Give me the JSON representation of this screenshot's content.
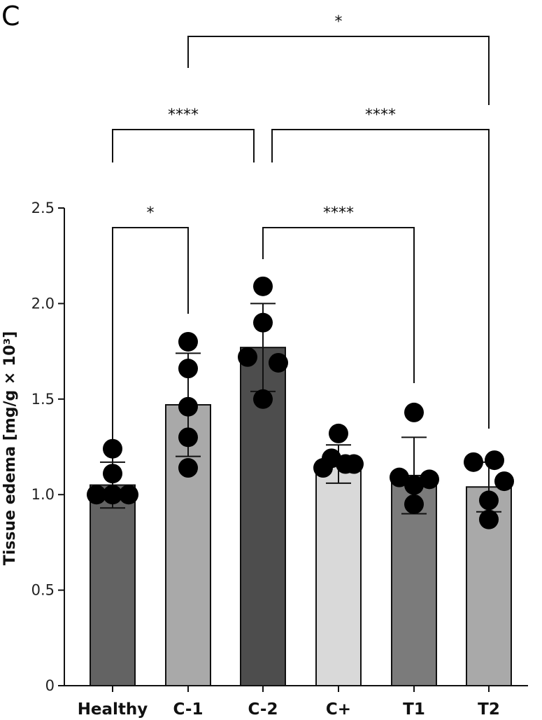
{
  "panel_label": "C",
  "chart_data": {
    "type": "bar",
    "title": "",
    "xlabel": "",
    "ylabel": "Tissue edema [mg/g × 10³]",
    "ylim": [
      0,
      2.5
    ],
    "yticks": [
      0,
      0.5,
      1.0,
      1.5,
      2.0,
      2.5
    ],
    "ytick_labels": [
      "0",
      "0.5",
      "1.0",
      "1.5",
      "2.0",
      "2.5"
    ],
    "categories": [
      "Healthy",
      "C-1",
      "C-2",
      "C+",
      "T1",
      "T2"
    ],
    "values": [
      1.05,
      1.47,
      1.77,
      1.16,
      1.1,
      1.04
    ],
    "error_sd": [
      0.12,
      0.27,
      0.23,
      0.1,
      0.2,
      0.13
    ],
    "bar_colors": [
      "#636363",
      "#a9a9a9",
      "#4d4d4d",
      "#d9d9d9",
      "#7b7b7b",
      "#a9a9a9"
    ],
    "points": [
      [
        1.0,
        1.0,
        1.11,
        1.24,
        1.0
      ],
      [
        1.8,
        1.66,
        1.46,
        1.3,
        1.14
      ],
      [
        2.09,
        1.9,
        1.72,
        1.69,
        1.5
      ],
      [
        1.32,
        1.19,
        1.14,
        1.16,
        1.16
      ],
      [
        1.43,
        1.09,
        1.05,
        1.08,
        0.95
      ],
      [
        1.17,
        1.18,
        1.07,
        0.97,
        0.87
      ]
    ],
    "significance": [
      {
        "from": "Healthy",
        "to": "C-1",
        "label": "*"
      },
      {
        "from": "C-2",
        "to": "T1",
        "label": "****"
      },
      {
        "from": "Healthy",
        "to": "C-2",
        "label": "****"
      },
      {
        "from": "C-2",
        "to": "T2",
        "label": "****"
      },
      {
        "from": "C-1",
        "to": "T2",
        "label": "*"
      }
    ],
    "grid": false,
    "legend": "none"
  }
}
